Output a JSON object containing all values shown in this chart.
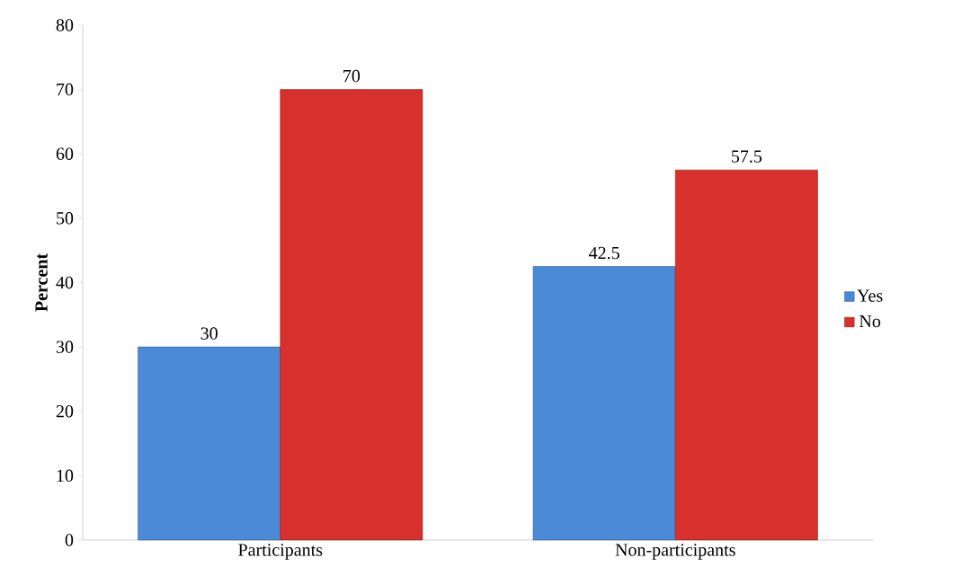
{
  "chart_data": {
    "type": "bar",
    "ylabel": "Percent",
    "categories": [
      "Participants",
      "Non-participants"
    ],
    "series": [
      {
        "name": "Yes",
        "color": "#4a8ad6",
        "values": [
          30,
          42.5
        ]
      },
      {
        "name": "No",
        "color": "#d8302c",
        "values": [
          70,
          57.5
        ]
      }
    ],
    "ylim": [
      0,
      80
    ],
    "yticks": [
      0,
      10,
      20,
      30,
      40,
      50,
      60,
      70,
      80
    ],
    "grid": false,
    "legend": "right",
    "data_labels": true
  }
}
